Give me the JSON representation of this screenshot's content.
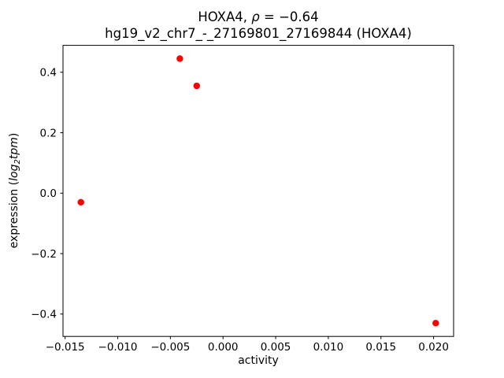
{
  "chart_data": {
    "type": "scatter",
    "title_line1_parts": {
      "prefix": "HOXA4, ",
      "rho": "ρ",
      "suffix": " = −0.64"
    },
    "title_line2": "hg19_v2_chr7_-_27169801_27169844 (HOXA4)",
    "xlabel": "activity",
    "ylabel_parts": {
      "prefix": "expression (",
      "log": "log",
      "sub": "2",
      "tpm": "tpm",
      "close": ")"
    },
    "xlim": [
      -0.0152,
      0.0219
    ],
    "ylim": [
      -0.474,
      0.489
    ],
    "x_ticks": [
      {
        "value": -0.015,
        "label": "−0.015"
      },
      {
        "value": -0.01,
        "label": "−0.010"
      },
      {
        "value": -0.005,
        "label": "−0.005"
      },
      {
        "value": 0.0,
        "label": "0.000"
      },
      {
        "value": 0.005,
        "label": "0.005"
      },
      {
        "value": 0.01,
        "label": "0.010"
      },
      {
        "value": 0.015,
        "label": "0.015"
      },
      {
        "value": 0.02,
        "label": "0.020"
      }
    ],
    "y_ticks": [
      {
        "value": -0.4,
        "label": "−0.4"
      },
      {
        "value": -0.2,
        "label": "−0.2"
      },
      {
        "value": 0.0,
        "label": "0.0"
      },
      {
        "value": 0.2,
        "label": "0.2"
      },
      {
        "value": 0.4,
        "label": "0.4"
      }
    ],
    "points": [
      {
        "x": -0.0135,
        "y": -0.03
      },
      {
        "x": -0.0041,
        "y": 0.445
      },
      {
        "x": -0.0025,
        "y": 0.355
      },
      {
        "x": 0.0202,
        "y": -0.43
      }
    ],
    "marker_color": "#ff0000",
    "spine_color": "#000000",
    "legend": "none",
    "grid": false
  }
}
